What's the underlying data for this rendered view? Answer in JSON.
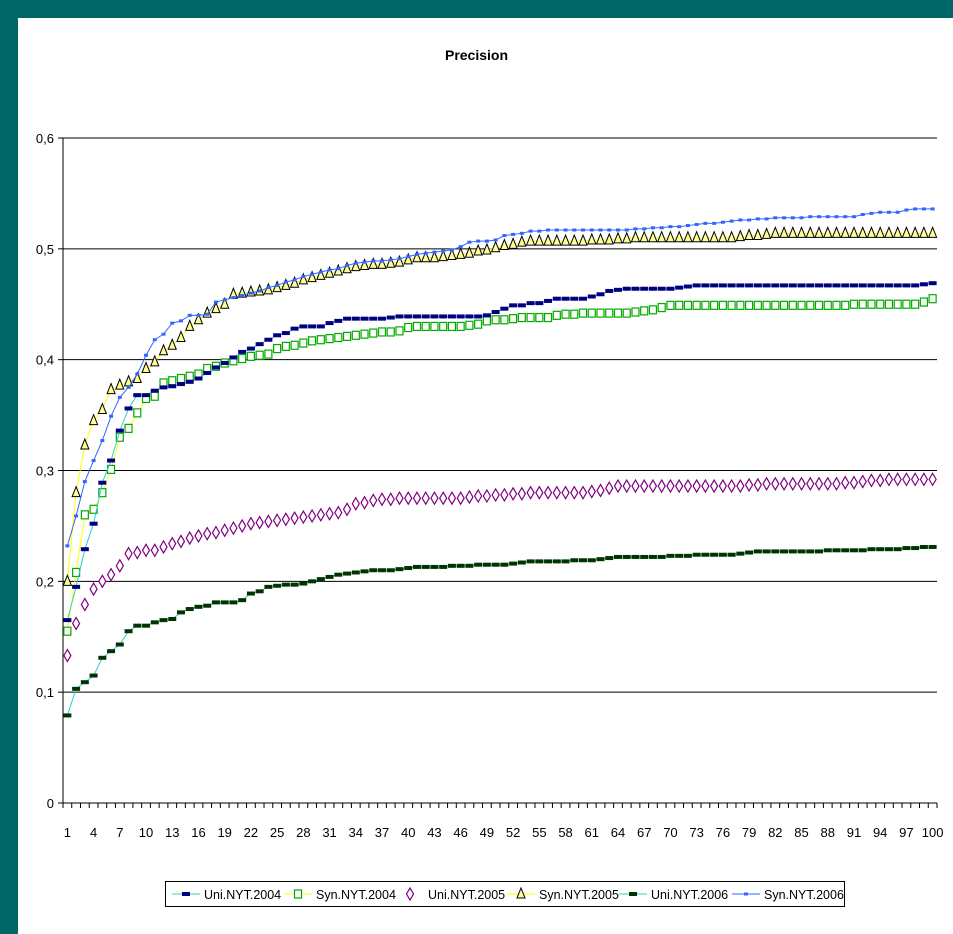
{
  "chart_data": {
    "type": "line",
    "title": "Precision",
    "xlabel": "",
    "ylabel": "",
    "x": [
      1,
      2,
      3,
      4,
      5,
      6,
      7,
      8,
      9,
      10,
      11,
      12,
      13,
      14,
      15,
      16,
      17,
      18,
      19,
      20,
      21,
      22,
      23,
      24,
      25,
      26,
      27,
      28,
      29,
      30,
      31,
      32,
      33,
      34,
      35,
      36,
      37,
      38,
      39,
      40,
      41,
      42,
      43,
      44,
      45,
      46,
      47,
      48,
      49,
      50,
      51,
      52,
      53,
      54,
      55,
      56,
      57,
      58,
      59,
      60,
      61,
      62,
      63,
      64,
      65,
      66,
      67,
      68,
      69,
      70,
      71,
      72,
      73,
      74,
      75,
      76,
      77,
      78,
      79,
      80,
      81,
      82,
      83,
      84,
      85,
      86,
      87,
      88,
      89,
      90,
      91,
      92,
      93,
      94,
      95,
      96,
      97,
      98,
      99,
      100
    ],
    "x_tick_labels": [
      "1",
      "4",
      "7",
      "10",
      "13",
      "16",
      "19",
      "22",
      "25",
      "28",
      "31",
      "34",
      "37",
      "40",
      "43",
      "46",
      "49",
      "52",
      "55",
      "58",
      "61",
      "64",
      "67",
      "70",
      "73",
      "76",
      "79",
      "82",
      "85",
      "88",
      "91",
      "94",
      "97",
      "100"
    ],
    "ylim": [
      0,
      0.6
    ],
    "y_ticks": [
      0,
      0.1,
      0.2,
      0.3,
      0.4,
      0.5,
      0.6
    ],
    "y_tick_labels": [
      "0",
      "0,1",
      "0,2",
      "0,3",
      "0,4",
      "0,5",
      "0,6"
    ],
    "grid": "horizontal",
    "legend_position": "bottom",
    "series": [
      {
        "name": "Uni.NYT.2004",
        "color": "#000080",
        "marker": "dash",
        "line": "#33cccc",
        "values": [
          0.165,
          0.195,
          0.229,
          0.252,
          0.289,
          0.309,
          0.336,
          0.356,
          0.368,
          0.368,
          0.372,
          0.375,
          0.376,
          0.378,
          0.38,
          0.383,
          0.388,
          0.393,
          0.397,
          0.402,
          0.407,
          0.41,
          0.414,
          0.418,
          0.422,
          0.424,
          0.428,
          0.43,
          0.43,
          0.43,
          0.433,
          0.435,
          0.437,
          0.437,
          0.437,
          0.437,
          0.437,
          0.438,
          0.439,
          0.439,
          0.439,
          0.439,
          0.439,
          0.439,
          0.439,
          0.439,
          0.439,
          0.439,
          0.44,
          0.443,
          0.446,
          0.449,
          0.449,
          0.451,
          0.451,
          0.453,
          0.455,
          0.455,
          0.455,
          0.455,
          0.457,
          0.459,
          0.462,
          0.463,
          0.464,
          0.464,
          0.464,
          0.464,
          0.464,
          0.464,
          0.465,
          0.466,
          0.467,
          0.467,
          0.467,
          0.467,
          0.467,
          0.467,
          0.467,
          0.467,
          0.467,
          0.467,
          0.467,
          0.467,
          0.467,
          0.467,
          0.467,
          0.467,
          0.467,
          0.467,
          0.467,
          0.467,
          0.467,
          0.467,
          0.467,
          0.467,
          0.467,
          0.467,
          0.468,
          0.469
        ]
      },
      {
        "name": "Syn.NYT.2004",
        "color": "#00aa00",
        "marker": "square",
        "line": "#ffff00",
        "values": [
          0.155,
          0.208,
          0.26,
          0.265,
          0.28,
          0.301,
          0.33,
          0.338,
          0.352,
          0.365,
          0.367,
          0.379,
          0.381,
          0.383,
          0.385,
          0.387,
          0.392,
          0.394,
          0.397,
          0.399,
          0.401,
          0.403,
          0.404,
          0.405,
          0.41,
          0.412,
          0.413,
          0.415,
          0.417,
          0.418,
          0.419,
          0.42,
          0.421,
          0.422,
          0.423,
          0.424,
          0.425,
          0.425,
          0.426,
          0.429,
          0.43,
          0.43,
          0.43,
          0.43,
          0.43,
          0.43,
          0.431,
          0.432,
          0.435,
          0.436,
          0.436,
          0.437,
          0.438,
          0.438,
          0.438,
          0.438,
          0.44,
          0.441,
          0.441,
          0.442,
          0.442,
          0.442,
          0.442,
          0.442,
          0.442,
          0.443,
          0.444,
          0.445,
          0.447,
          0.449,
          0.449,
          0.449,
          0.449,
          0.449,
          0.449,
          0.449,
          0.449,
          0.449,
          0.449,
          0.449,
          0.449,
          0.449,
          0.449,
          0.449,
          0.449,
          0.449,
          0.449,
          0.449,
          0.449,
          0.449,
          0.45,
          0.45,
          0.45,
          0.45,
          0.45,
          0.45,
          0.45,
          0.45,
          0.452,
          0.455
        ]
      },
      {
        "name": "Uni.NYT.2005",
        "color": "#800080",
        "marker": "diamond",
        "line": "none",
        "values": [
          0.133,
          0.162,
          0.179,
          0.193,
          0.2,
          0.206,
          0.214,
          0.225,
          0.226,
          0.228,
          0.228,
          0.231,
          0.234,
          0.236,
          0.239,
          0.241,
          0.243,
          0.244,
          0.246,
          0.248,
          0.25,
          0.252,
          0.253,
          0.254,
          0.255,
          0.256,
          0.257,
          0.258,
          0.259,
          0.26,
          0.261,
          0.262,
          0.265,
          0.27,
          0.271,
          0.273,
          0.274,
          0.274,
          0.275,
          0.275,
          0.275,
          0.275,
          0.275,
          0.275,
          0.275,
          0.275,
          0.276,
          0.277,
          0.277,
          0.278,
          0.278,
          0.279,
          0.279,
          0.28,
          0.28,
          0.28,
          0.28,
          0.28,
          0.28,
          0.28,
          0.281,
          0.282,
          0.284,
          0.286,
          0.286,
          0.286,
          0.286,
          0.286,
          0.286,
          0.286,
          0.286,
          0.286,
          0.286,
          0.286,
          0.286,
          0.286,
          0.286,
          0.286,
          0.287,
          0.287,
          0.288,
          0.288,
          0.288,
          0.288,
          0.288,
          0.288,
          0.288,
          0.288,
          0.288,
          0.289,
          0.289,
          0.29,
          0.291,
          0.291,
          0.292,
          0.292,
          0.292,
          0.292,
          0.292,
          0.292
        ]
      },
      {
        "name": "Syn.NYT.2005",
        "color": "#000000",
        "marker": "triangle",
        "fill": "#ffff99",
        "line": "#ffff00",
        "values": [
          0.2,
          0.28,
          0.323,
          0.345,
          0.355,
          0.373,
          0.377,
          0.38,
          0.383,
          0.392,
          0.398,
          0.408,
          0.413,
          0.42,
          0.43,
          0.436,
          0.442,
          0.446,
          0.45,
          0.459,
          0.46,
          0.461,
          0.462,
          0.463,
          0.465,
          0.467,
          0.469,
          0.472,
          0.474,
          0.476,
          0.478,
          0.48,
          0.482,
          0.484,
          0.485,
          0.486,
          0.486,
          0.487,
          0.488,
          0.49,
          0.492,
          0.492,
          0.492,
          0.493,
          0.494,
          0.495,
          0.496,
          0.498,
          0.499,
          0.501,
          0.503,
          0.504,
          0.506,
          0.507,
          0.507,
          0.507,
          0.507,
          0.507,
          0.507,
          0.507,
          0.508,
          0.508,
          0.508,
          0.509,
          0.509,
          0.51,
          0.51,
          0.51,
          0.51,
          0.51,
          0.51,
          0.51,
          0.51,
          0.51,
          0.51,
          0.51,
          0.51,
          0.511,
          0.512,
          0.512,
          0.513,
          0.514,
          0.514,
          0.514,
          0.514,
          0.514,
          0.514,
          0.514,
          0.514,
          0.514,
          0.514,
          0.514,
          0.514,
          0.514,
          0.514,
          0.514,
          0.514,
          0.514,
          0.514,
          0.514
        ]
      },
      {
        "name": "Uni.NYT.2006",
        "color": "#003300",
        "marker": "dash",
        "line": "#33cccc",
        "values": [
          0.079,
          0.103,
          0.109,
          0.115,
          0.131,
          0.137,
          0.143,
          0.155,
          0.16,
          0.16,
          0.163,
          0.165,
          0.166,
          0.172,
          0.175,
          0.177,
          0.178,
          0.181,
          0.181,
          0.181,
          0.183,
          0.189,
          0.191,
          0.195,
          0.196,
          0.197,
          0.197,
          0.198,
          0.2,
          0.202,
          0.204,
          0.206,
          0.207,
          0.208,
          0.209,
          0.21,
          0.21,
          0.21,
          0.211,
          0.212,
          0.213,
          0.213,
          0.213,
          0.213,
          0.214,
          0.214,
          0.214,
          0.215,
          0.215,
          0.215,
          0.215,
          0.216,
          0.217,
          0.218,
          0.218,
          0.218,
          0.218,
          0.218,
          0.219,
          0.219,
          0.219,
          0.22,
          0.221,
          0.222,
          0.222,
          0.222,
          0.222,
          0.222,
          0.222,
          0.223,
          0.223,
          0.223,
          0.224,
          0.224,
          0.224,
          0.224,
          0.224,
          0.225,
          0.226,
          0.227,
          0.227,
          0.227,
          0.227,
          0.227,
          0.227,
          0.227,
          0.227,
          0.228,
          0.228,
          0.228,
          0.228,
          0.228,
          0.229,
          0.229,
          0.229,
          0.229,
          0.23,
          0.23,
          0.231,
          0.231
        ]
      },
      {
        "name": "Syn.NYT.2006",
        "color": "#3366ff",
        "marker": "dot",
        "line": "#3366ff",
        "values": [
          0.232,
          0.259,
          0.29,
          0.309,
          0.327,
          0.349,
          0.366,
          0.375,
          0.387,
          0.404,
          0.418,
          0.423,
          0.433,
          0.435,
          0.44,
          0.44,
          0.441,
          0.452,
          0.454,
          0.456,
          0.458,
          0.46,
          0.462,
          0.465,
          0.467,
          0.47,
          0.472,
          0.475,
          0.477,
          0.479,
          0.481,
          0.482,
          0.485,
          0.487,
          0.488,
          0.489,
          0.489,
          0.49,
          0.491,
          0.493,
          0.495,
          0.496,
          0.497,
          0.498,
          0.499,
          0.502,
          0.506,
          0.507,
          0.507,
          0.508,
          0.512,
          0.513,
          0.514,
          0.516,
          0.516,
          0.517,
          0.517,
          0.517,
          0.517,
          0.517,
          0.517,
          0.517,
          0.517,
          0.517,
          0.517,
          0.518,
          0.518,
          0.519,
          0.519,
          0.52,
          0.52,
          0.521,
          0.522,
          0.523,
          0.523,
          0.524,
          0.525,
          0.526,
          0.526,
          0.527,
          0.527,
          0.528,
          0.528,
          0.528,
          0.528,
          0.529,
          0.529,
          0.529,
          0.529,
          0.529,
          0.529,
          0.531,
          0.532,
          0.533,
          0.533,
          0.533,
          0.535,
          0.536,
          0.536,
          0.536
        ]
      }
    ]
  }
}
